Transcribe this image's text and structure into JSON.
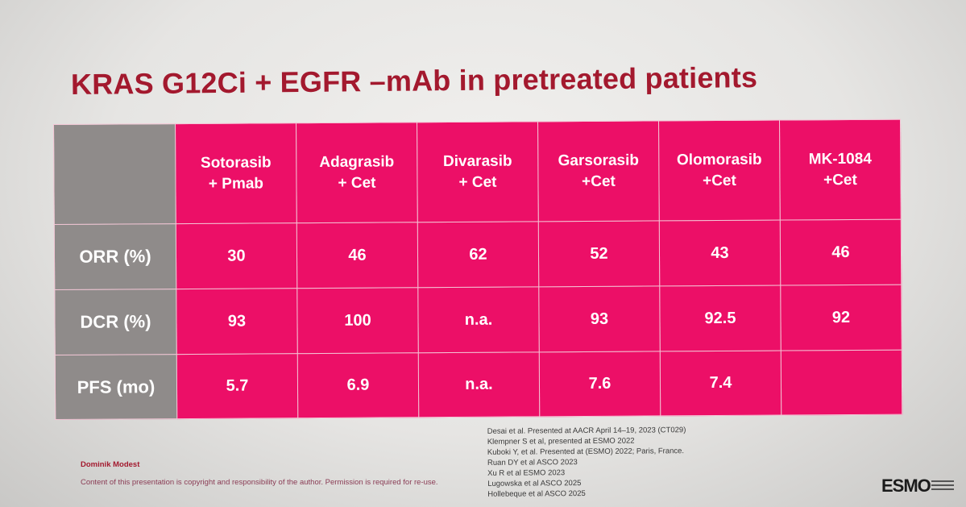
{
  "title": "KRAS G12Ci + EGFR –mAb in pretreated patients",
  "table": {
    "columns": [
      {
        "line1": "Sotorasib",
        "line2": "+ Pmab"
      },
      {
        "line1": "Adagrasib",
        "line2": "+ Cet"
      },
      {
        "line1": "Divarasib",
        "line2": "+ Cet"
      },
      {
        "line1": "Garsorasib",
        "line2": "+Cet"
      },
      {
        "line1": "Olomorasib",
        "line2": "+Cet"
      },
      {
        "line1": "MK-1084",
        "line2": "+Cet"
      }
    ],
    "rows": [
      {
        "label": "ORR (%)",
        "values": [
          "30",
          "46",
          "62",
          "52",
          "43",
          "46"
        ]
      },
      {
        "label": "DCR (%)",
        "values": [
          "93",
          "100",
          "n.a.",
          "93",
          "92.5",
          "92"
        ]
      },
      {
        "label": "PFS (mo)",
        "values": [
          "5.7",
          "6.9",
          "n.a.",
          "7.6",
          "7.4",
          ""
        ]
      }
    ]
  },
  "references": [
    "Desai et al. Presented at AACR April 14–19, 2023 (CT029)",
    "Klempner S et al, presented at ESMO 2022",
    "Kuboki Y, et al. Presented at (ESMO) 2022; Paris, France.",
    "Ruan DY et al ASCO 2023",
    "Xu R et al ESMO 2023",
    "Lugowska et al ASCO 2025",
    "Hollebeque et al ASCO 2025"
  ],
  "footer": {
    "author": "Dominik Modest",
    "disclaimer": "Content of this presentation is copyright and responsibility of the author. Permission is required for re-use."
  },
  "logo": {
    "text": "ESMO"
  },
  "colors": {
    "title": "#a3192e",
    "table_pink": "#ec0f67",
    "table_gray": "#8f8b8a"
  }
}
